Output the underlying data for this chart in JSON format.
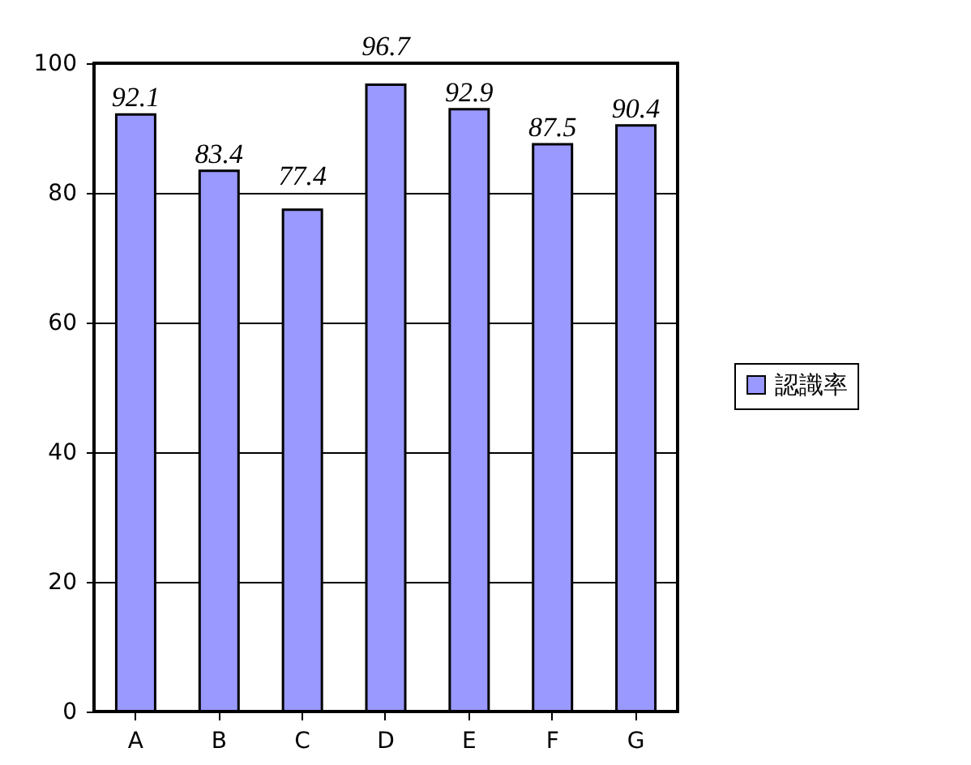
{
  "chart_data": {
    "type": "bar",
    "categories": [
      "A",
      "B",
      "C",
      "D",
      "E",
      "F",
      "G"
    ],
    "series": [
      {
        "name": "認識率",
        "color": "#9999ff",
        "values": [
          92.1,
          83.4,
          77.4,
          96.7,
          92.9,
          87.5,
          90.4
        ]
      }
    ],
    "ylim": [
      0,
      100
    ],
    "yticks": [
      0,
      20,
      40,
      60,
      80,
      100
    ],
    "grid": "y",
    "legend": "right",
    "data_labels": true
  }
}
